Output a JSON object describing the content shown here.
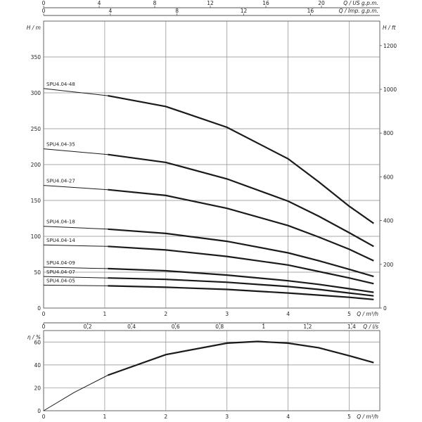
{
  "chart_data": [
    {
      "type": "line",
      "title": "",
      "axes": {
        "x_bottom": {
          "label": "Q / m³/h",
          "ticks": [
            "0",
            "1",
            "2",
            "3",
            "4",
            "5"
          ],
          "range": [
            0,
            5.5
          ]
        },
        "x_flow_ls": {
          "label": "Q / l/s",
          "ticks": [
            "0",
            "0,2",
            "0,4",
            "0,6",
            "0,8",
            "1",
            "1,2",
            "1,4"
          ],
          "range": [
            0,
            1.528
          ]
        },
        "x_imp_gpm": {
          "label": "Q / Imp. g.p.m.",
          "ticks": [
            "0",
            "4",
            "8",
            "12",
            "16"
          ],
          "range": [
            0,
            20.16
          ]
        },
        "x_us_gpm": {
          "label": "Q / US g.p.m.",
          "ticks": [
            "0",
            "4",
            "8",
            "12",
            "16",
            "20"
          ],
          "range": [
            0,
            24.2
          ]
        },
        "y_left": {
          "label": "H / m",
          "ticks": [
            "0",
            "50",
            "100",
            "150",
            "200",
            "250",
            "300",
            "350"
          ],
          "range": [
            0,
            400
          ]
        },
        "y_right": {
          "label": "H / ft",
          "ticks": [
            "0",
            "200",
            "400",
            "600",
            "800",
            "1000",
            "1200"
          ],
          "range": [
            0,
            1312
          ]
        }
      },
      "grid": true,
      "dashed_from": 0,
      "solid_from": 1.05,
      "q_end": 5.4,
      "series": [
        {
          "name": "SPU4.04-48",
          "points": [
            [
              0,
              306
            ],
            [
              1.05,
              296
            ],
            [
              2,
              281
            ],
            [
              3,
              252
            ],
            [
              4,
              208
            ],
            [
              4.5,
              176
            ],
            [
              5,
              142
            ],
            [
              5.4,
              118
            ]
          ]
        },
        {
          "name": "SPU4.04-35",
          "points": [
            [
              0,
              222
            ],
            [
              1.05,
              214
            ],
            [
              2,
              203
            ],
            [
              3,
              180
            ],
            [
              4,
              149
            ],
            [
              4.5,
              128
            ],
            [
              5,
              105
            ],
            [
              5.4,
              86
            ]
          ]
        },
        {
          "name": "SPU4.04-27",
          "points": [
            [
              0,
              171
            ],
            [
              1.05,
              165
            ],
            [
              2,
              157
            ],
            [
              3,
              139
            ],
            [
              4,
              115
            ],
            [
              4.5,
              99
            ],
            [
              5,
              82
            ],
            [
              5.4,
              66
            ]
          ]
        },
        {
          "name": "SPU4.04-18",
          "points": [
            [
              0,
              114
            ],
            [
              1.05,
              110
            ],
            [
              2,
              104
            ],
            [
              3,
              93
            ],
            [
              4,
              77
            ],
            [
              4.5,
              66
            ],
            [
              5,
              54
            ],
            [
              5.4,
              44
            ]
          ]
        },
        {
          "name": "SPU4.04-14",
          "points": [
            [
              0,
              88
            ],
            [
              1.05,
              86
            ],
            [
              2,
              81
            ],
            [
              3,
              72
            ],
            [
              4,
              60
            ],
            [
              4.5,
              51
            ],
            [
              5,
              42
            ],
            [
              5.4,
              34
            ]
          ]
        },
        {
          "name": "SPU4.04-09",
          "points": [
            [
              0,
              57
            ],
            [
              1.05,
              55
            ],
            [
              2,
              52
            ],
            [
              3,
              46
            ],
            [
              4,
              38
            ],
            [
              4.5,
              33
            ],
            [
              5,
              27
            ],
            [
              5.4,
              22
            ]
          ]
        },
        {
          "name": "SPU4.04-07",
          "points": [
            [
              0,
              44
            ],
            [
              1.05,
              42
            ],
            [
              2,
              40
            ],
            [
              3,
              36
            ],
            [
              4,
              30
            ],
            [
              4.5,
              26
            ],
            [
              5,
              21
            ],
            [
              5.4,
              17
            ]
          ]
        },
        {
          "name": "SPU4.04-05",
          "points": [
            [
              0,
              32
            ],
            [
              1.05,
              31
            ],
            [
              2,
              29
            ],
            [
              3,
              26
            ],
            [
              4,
              21
            ],
            [
              4.5,
              18
            ],
            [
              5,
              15
            ],
            [
              5.4,
              12
            ]
          ]
        }
      ]
    },
    {
      "type": "line",
      "title": "",
      "axes": {
        "x_bottom": {
          "label": "Q / m³/h",
          "ticks": [
            "0",
            "1",
            "2",
            "3",
            "4",
            "5"
          ],
          "range": [
            0,
            5.5
          ]
        },
        "y_left": {
          "label": "η / %",
          "ticks": [
            "0",
            "20",
            "40",
            "60"
          ],
          "range": [
            0,
            70
          ]
        }
      },
      "grid": true,
      "series": [
        {
          "name": "",
          "points": [
            [
              0,
              0
            ],
            [
              0.5,
              16
            ],
            [
              1.05,
              31
            ],
            [
              2,
              49
            ],
            [
              3,
              59
            ],
            [
              3.5,
              60.5
            ],
            [
              4,
              59
            ],
            [
              4.5,
              55
            ],
            [
              5,
              48
            ],
            [
              5.4,
              42
            ]
          ]
        }
      ]
    }
  ]
}
